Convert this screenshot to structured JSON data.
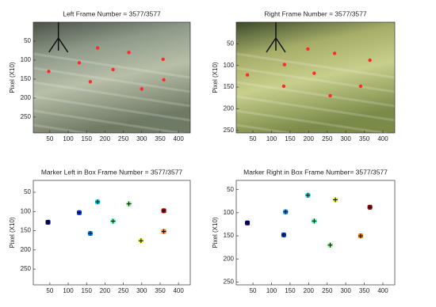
{
  "chart_data": [
    {
      "type": "image",
      "title": "Left  Frame Number = 3577/3577",
      "ylabel": "Pixel (X10)",
      "xlim": [
        5,
        432
      ],
      "ylim": [
        0,
        292
      ],
      "reverse_y": true,
      "xticks": [
        50,
        100,
        150,
        200,
        250,
        300,
        350,
        400
      ],
      "yticks": [
        50,
        100,
        150,
        200,
        250
      ],
      "series": [
        {
          "color": "#ff2a2a",
          "x": [
            47,
            130,
            160,
            180,
            222,
            265,
            300,
            358,
            360
          ],
          "values": [
            130,
            107,
            157,
            68,
            125,
            80,
            176,
            98,
            152
          ]
        }
      ]
    },
    {
      "type": "image",
      "title": "Right  Frame Number = 3577/3577",
      "ylabel": "Pixel (X10)",
      "xlim": [
        5,
        432
      ],
      "ylim": [
        0,
        256
      ],
      "reverse_y": true,
      "xticks": [
        50,
        100,
        150,
        200,
        250,
        300,
        350,
        400
      ],
      "yticks": [
        50,
        100,
        150,
        200,
        250
      ],
      "series": [
        {
          "color": "#ff2a2a",
          "x": [
            35,
            133,
            135,
            198,
            215,
            258,
            270,
            340,
            365
          ],
          "values": [
            122,
            148,
            98,
            62,
            118,
            170,
            72,
            148,
            88
          ]
        }
      ]
    },
    {
      "type": "scatter",
      "title": "Marker Left in Box Frame Number = 3577/3577",
      "ylabel": "Pixel (X10)",
      "xlim": [
        5,
        432
      ],
      "ylim": [
        19,
        291
      ],
      "reverse_y": true,
      "xticks": [
        50,
        100,
        150,
        200,
        250,
        300,
        350,
        400
      ],
      "yticks": [
        50,
        100,
        150,
        200,
        250
      ],
      "series": [
        {
          "x": [
            45,
            130,
            160,
            180,
            222,
            265,
            298,
            360,
            360
          ],
          "values": [
            128,
            103,
            157,
            75,
            125,
            80,
            176,
            98,
            152
          ],
          "colors": [
            "#00008f",
            "#0040ff",
            "#0090ff",
            "#10e0f0",
            "#40ffbf",
            "#80ff80",
            "#f0ff10",
            "#c00000",
            "#ff8000"
          ]
        }
      ]
    },
    {
      "type": "scatter",
      "title": "Marker Right in Box Frame Number= 3577/3577",
      "ylabel": "Pixel (X10)",
      "xlim": [
        5,
        432
      ],
      "ylim": [
        30,
        256
      ],
      "reverse_y": true,
      "xticks": [
        50,
        100,
        150,
        200,
        250,
        300,
        350,
        400
      ],
      "yticks": [
        50,
        100,
        150,
        200,
        250
      ],
      "series": [
        {
          "x": [
            35,
            133,
            138,
            198,
            215,
            258,
            272,
            340,
            365
          ],
          "values": [
            122,
            148,
            98,
            62,
            118,
            170,
            72,
            150,
            88
          ],
          "colors": [
            "#00008f",
            "#0040ff",
            "#0090ff",
            "#10e0f0",
            "#40ffbf",
            "#80ff80",
            "#f0ff10",
            "#ff8000",
            "#c00000"
          ]
        }
      ]
    }
  ]
}
